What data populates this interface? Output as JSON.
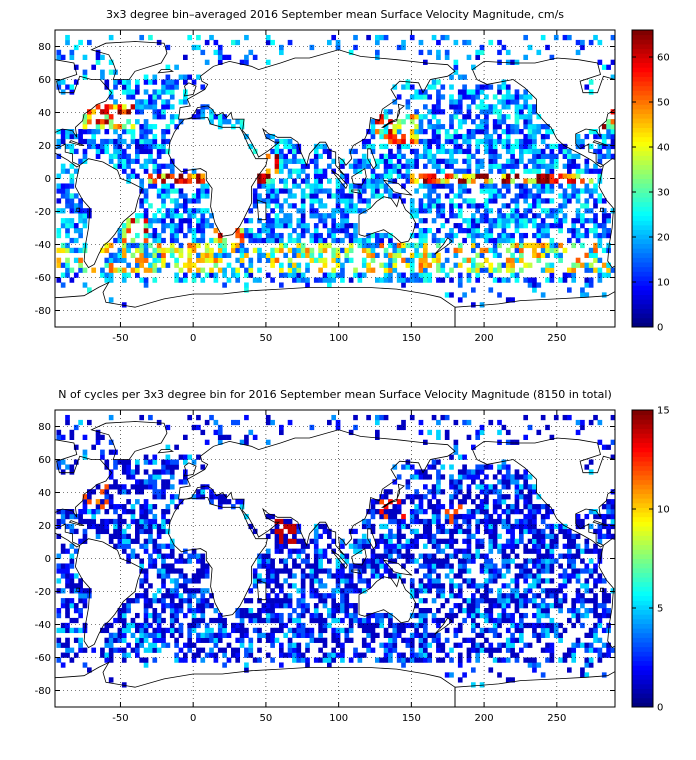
{
  "chart_data": [
    {
      "type": "heatmap",
      "title": "3x3 degree bin–averaged 2016 September mean Surface Velocity Magnitude, cm/s",
      "xlabel": "",
      "ylabel": "",
      "xlim": [
        -95,
        290
      ],
      "ylim": [
        -90,
        90
      ],
      "x_ticks": [
        -50,
        0,
        50,
        100,
        150,
        200,
        250
      ],
      "y_ticks": [
        -80,
        -60,
        -40,
        -20,
        0,
        20,
        40,
        60,
        80
      ],
      "bin_size_deg": 3,
      "colorbar": {
        "min": 0,
        "max": 66,
        "ticks": [
          0,
          10,
          20,
          30,
          40,
          50,
          60
        ],
        "colormap": "jet"
      },
      "grid": true,
      "grid_style": "dotted",
      "coastlines": true,
      "data_note": "Dense scattered 3x3 degree ocean bins; highest speeds along equatorial currents (~60+ cm/s), Gulf Stream, Agulhas and Antarctic Circumpolar Current; typical open-ocean values 10-30 cm/s."
    },
    {
      "type": "heatmap",
      "title": "N of cycles per 3x3 degree bin for 2016 September mean Surface Velocity Magnitude (8150 in total)",
      "xlabel": "",
      "ylabel": "",
      "xlim": [
        -95,
        290
      ],
      "ylim": [
        -90,
        90
      ],
      "x_ticks": [
        -50,
        0,
        50,
        100,
        150,
        200,
        250
      ],
      "y_ticks": [
        -80,
        -60,
        -40,
        -20,
        0,
        20,
        40,
        60,
        80
      ],
      "bin_size_deg": 3,
      "colorbar": {
        "min": 0,
        "max": 15,
        "ticks": [
          0,
          5,
          10,
          15
        ],
        "colormap": "jet"
      },
      "grid": true,
      "grid_style": "dotted",
      "coastlines": true,
      "data_note": "Most ocean bins hold 1-4 cycles (blue); a few high-count bins (10-15) in the Arabian Sea, Kuroshio region and NW Atlantic."
    }
  ]
}
